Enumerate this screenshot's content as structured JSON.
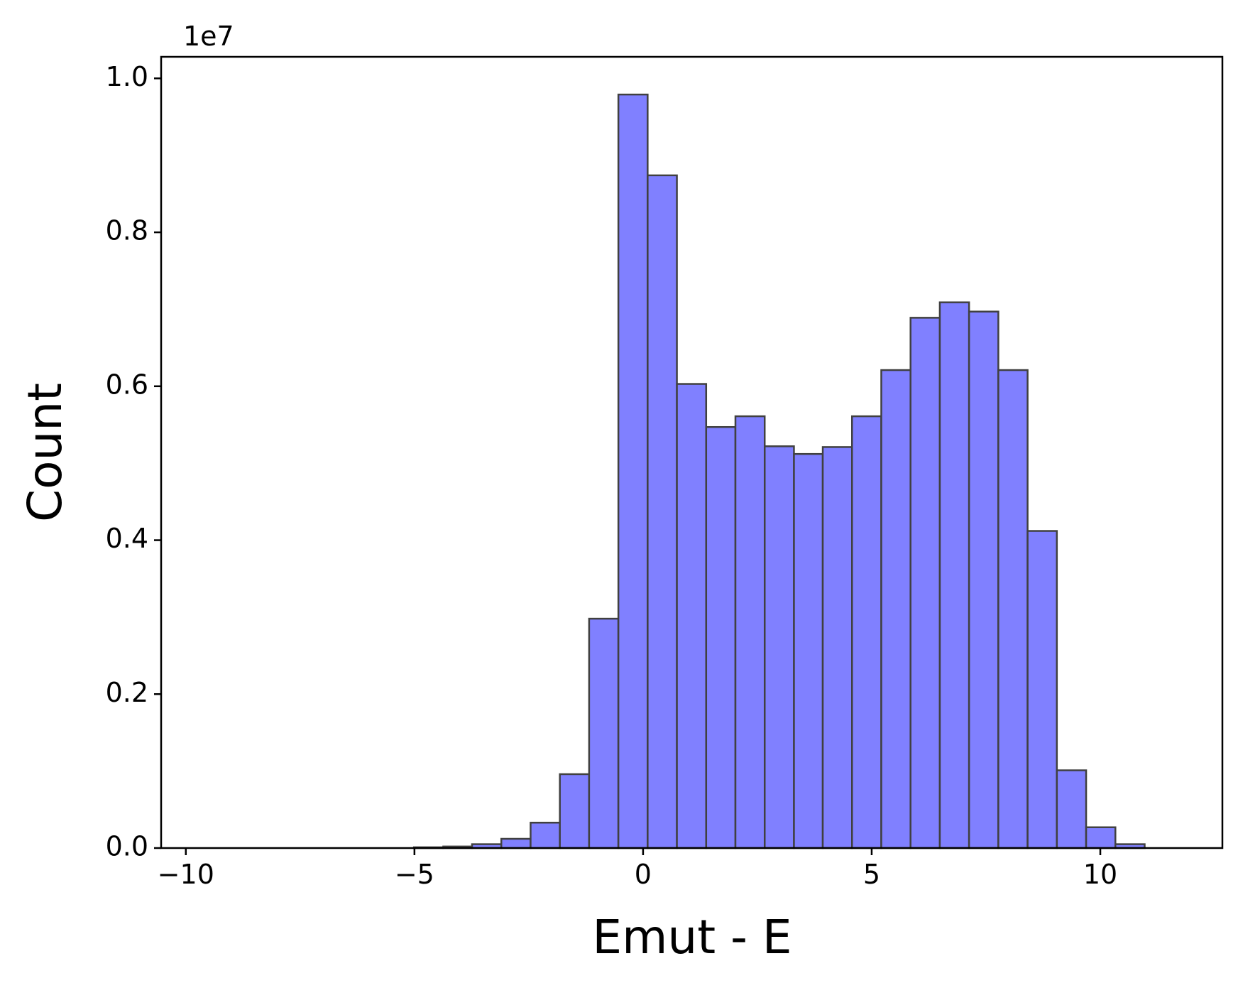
{
  "chart_data": {
    "type": "histogram",
    "x_label": "Emut - E",
    "y_label": "Count",
    "y_offset_label": "1e7",
    "bins": [
      -9.49,
      -8.85,
      -8.21,
      -7.57,
      -6.93,
      -6.29,
      -5.65,
      -5.01,
      -4.37,
      -3.74,
      -3.1,
      -2.46,
      -1.82,
      -1.18,
      -0.54,
      0.1,
      0.74,
      1.38,
      2.02,
      2.66,
      3.3,
      3.93,
      4.57,
      5.21,
      5.85,
      6.49,
      7.13,
      7.77,
      8.41,
      9.05,
      9.69,
      10.33,
      10.97,
      11.61
    ],
    "values": [
      0,
      0,
      0,
      0,
      0,
      0,
      0,
      10000,
      20000,
      50000,
      120000,
      330000,
      960000,
      2980000,
      9790000,
      8740000,
      6030000,
      5470000,
      5610000,
      5220000,
      5120000,
      5210000,
      5610000,
      6210000,
      6890000,
      7090000,
      6970000,
      6210000,
      4120000,
      1010000,
      270000,
      50000,
      0
    ],
    "color": "#8080ff",
    "edge_color": "#404040",
    "xlim": [
      -10.54,
      12.67
    ],
    "xticks": [
      {
        "value": -10,
        "label": "−10"
      },
      {
        "value": -5,
        "label": "−5"
      },
      0,
      5,
      10
    ],
    "ylim": [
      0,
      10280000
    ],
    "yticks": [
      {
        "value": 0,
        "label": "0.0"
      },
      {
        "value": 2000000,
        "label": "0.2"
      },
      {
        "value": 4000000,
        "label": "0.4"
      },
      {
        "value": 6000000,
        "label": "0.6"
      },
      {
        "value": 8000000,
        "label": "0.8"
      },
      {
        "value": 10000000,
        "label": "1.0"
      }
    ],
    "grid": false
  }
}
